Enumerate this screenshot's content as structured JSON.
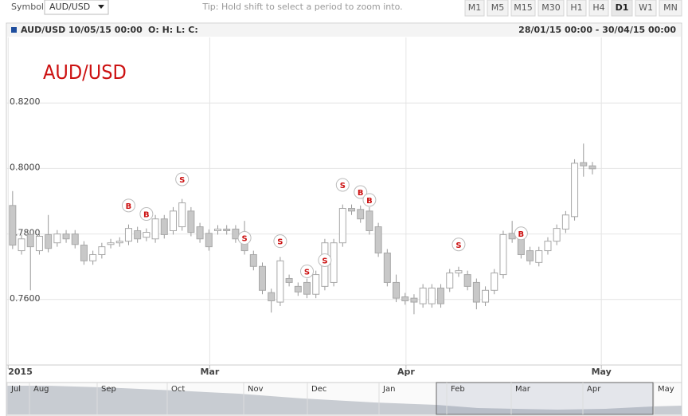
{
  "toolbar": {
    "symbol_label": "Symbol",
    "symbol": "AUD/USD",
    "tip": "Tip: Hold shift to select a period to zoom into.",
    "timeframes": [
      "M1",
      "M5",
      "M15",
      "M30",
      "H1",
      "H4",
      "D1",
      "W1",
      "MN"
    ],
    "active_timeframe": "D1"
  },
  "header": {
    "symbol": "AUD/USD",
    "date": "10/05/15 00:00",
    "ohlc": "O: H: L: C:",
    "range": "28/01/15 00:00 - 30/04/15 00:00"
  },
  "chart_data": {
    "type": "candlestick",
    "title": "AUD/USD",
    "up_color": "#ffffff",
    "down_color": "#c8c8c8",
    "outline_color": "#a8a8a8",
    "marker_color": "#cc1111",
    "open": [
      0.7887,
      0.7749,
      0.7798,
      0.7749,
      0.7798,
      0.7773,
      0.78,
      0.78,
      0.7766,
      0.7718,
      0.7737,
      0.7768,
      0.7773,
      0.7778,
      0.781,
      0.779,
      0.7785,
      0.7846,
      0.781,
      0.7822,
      0.787,
      0.7822,
      0.7802,
      0.781,
      0.7815,
      0.7815,
      0.7785,
      0.7737,
      0.7701,
      0.7621,
      0.7592,
      0.7664,
      0.764,
      0.7652,
      0.7616,
      0.764,
      0.7652,
      0.7773,
      0.7878,
      0.7875,
      0.787,
      0.7822,
      0.7742,
      0.7652,
      0.7608,
      0.7604,
      0.7587,
      0.7587,
      0.7635,
      0.7635,
      0.7681,
      0.7676,
      0.7652,
      0.7592,
      0.7628,
      0.7676,
      0.7802,
      0.7785,
      0.7749,
      0.7713,
      0.7749,
      0.7778,
      0.7815,
      0.7853,
      0.8018,
      0.8008
    ],
    "high": [
      0.7931,
      0.7797,
      0.781,
      0.7805,
      0.7858,
      0.7812,
      0.7812,
      0.7812,
      0.7778,
      0.7749,
      0.7773,
      0.7785,
      0.779,
      0.7829,
      0.7822,
      0.7817,
      0.7858,
      0.7858,
      0.7882,
      0.7907,
      0.7882,
      0.7834,
      0.7814,
      0.7827,
      0.7827,
      0.7827,
      0.784,
      0.7749,
      0.7713,
      0.7633,
      0.773,
      0.7676,
      0.7652,
      0.7664,
      0.7688,
      0.7785,
      0.7785,
      0.789,
      0.789,
      0.7887,
      0.7882,
      0.7834,
      0.7754,
      0.7676,
      0.762,
      0.7616,
      0.7647,
      0.7647,
      0.7647,
      0.7693,
      0.77,
      0.7688,
      0.7664,
      0.764,
      0.7693,
      0.781,
      0.784,
      0.7797,
      0.7761,
      0.7761,
      0.779,
      0.7829,
      0.787,
      0.8028,
      0.8076,
      0.802
    ],
    "low": [
      0.7754,
      0.7737,
      0.7628,
      0.7737,
      0.7744,
      0.7761,
      0.7773,
      0.7756,
      0.7706,
      0.7706,
      0.7725,
      0.7756,
      0.7761,
      0.7766,
      0.7773,
      0.7778,
      0.7773,
      0.7786,
      0.7798,
      0.781,
      0.7793,
      0.7773,
      0.7749,
      0.7798,
      0.7798,
      0.7773,
      0.7737,
      0.7689,
      0.7616,
      0.756,
      0.758,
      0.764,
      0.7611,
      0.7604,
      0.7604,
      0.7628,
      0.764,
      0.7761,
      0.7858,
      0.7834,
      0.7798,
      0.773,
      0.764,
      0.7592,
      0.7584,
      0.7555,
      0.7575,
      0.7575,
      0.7575,
      0.7623,
      0.7669,
      0.7628,
      0.757,
      0.758,
      0.7616,
      0.7664,
      0.7773,
      0.7725,
      0.7706,
      0.7701,
      0.7737,
      0.7766,
      0.7803,
      0.7841,
      0.7975,
      0.7982
    ],
    "close": [
      0.7766,
      0.7785,
      0.7761,
      0.7793,
      0.7756,
      0.78,
      0.7785,
      0.7768,
      0.7718,
      0.7737,
      0.7761,
      0.7773,
      0.7778,
      0.7817,
      0.7785,
      0.7805,
      0.7846,
      0.7798,
      0.787,
      0.7895,
      0.7805,
      0.7785,
      0.7761,
      0.7815,
      0.781,
      0.7785,
      0.7749,
      0.7701,
      0.7628,
      0.7596,
      0.7718,
      0.7652,
      0.7623,
      0.7616,
      0.7676,
      0.7773,
      0.7773,
      0.7878,
      0.787,
      0.7846,
      0.781,
      0.7742,
      0.7652,
      0.7604,
      0.7596,
      0.7592,
      0.7635,
      0.7635,
      0.7587,
      0.7681,
      0.7688,
      0.764,
      0.7592,
      0.7628,
      0.7681,
      0.7798,
      0.7785,
      0.7737,
      0.7718,
      0.7749,
      0.7778,
      0.7817,
      0.7858,
      0.8016,
      0.8008,
      0.7999
    ],
    "xlim": [
      -0.7,
      75
    ],
    "xticks": [
      {
        "value": -0.5,
        "label": "2015"
      },
      {
        "value": 22.1,
        "label": "Mar"
      },
      {
        "value": 44.1,
        "label": "Apr"
      },
      {
        "value": 66,
        "label": "May"
      }
    ],
    "ylim": [
      0.74,
      0.84
    ],
    "yticks": [
      {
        "value": 0.76,
        "label": "0.7600"
      },
      {
        "value": 0.78,
        "label": "0.7800"
      },
      {
        "value": 0.8,
        "label": "0.8000"
      },
      {
        "value": 0.82,
        "label": "0.8200"
      }
    ],
    "grid": true,
    "markers": [
      {
        "label": "B",
        "x": 13,
        "y": 0.7887
      },
      {
        "label": "B",
        "x": 15,
        "y": 0.7861
      },
      {
        "label": "S",
        "x": 19,
        "y": 0.7967
      },
      {
        "label": "S",
        "x": 26,
        "y": 0.7788
      },
      {
        "label": "S",
        "x": 30,
        "y": 0.7778
      },
      {
        "label": "S",
        "x": 33,
        "y": 0.7686
      },
      {
        "label": "S",
        "x": 35,
        "y": 0.772
      },
      {
        "label": "S",
        "x": 37,
        "y": 0.795
      },
      {
        "label": "B",
        "x": 39,
        "y": 0.7928
      },
      {
        "label": "B",
        "x": 40,
        "y": 0.7904
      },
      {
        "label": "S",
        "x": 50,
        "y": 0.7768
      },
      {
        "label": "B",
        "x": 57,
        "y": 0.7802
      }
    ]
  },
  "navigator": {
    "labels": [
      "Jul",
      "Aug",
      "Sep",
      "Oct",
      "Nov",
      "Dec",
      "Jan",
      "Feb",
      "Mar",
      "Apr",
      "May"
    ]
  }
}
